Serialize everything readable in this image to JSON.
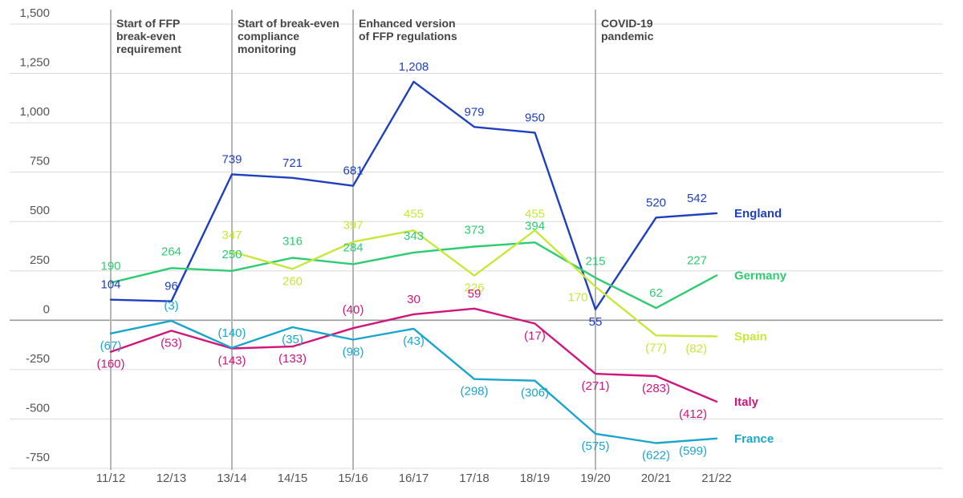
{
  "chart_data": {
    "type": "line",
    "categories": [
      "11/12",
      "12/13",
      "13/14",
      "14/15",
      "15/16",
      "16/17",
      "17/18",
      "18/19",
      "19/20",
      "20/21",
      "21/22"
    ],
    "ylim": [
      -750,
      1500
    ],
    "yticks": [
      1500,
      1250,
      1000,
      750,
      500,
      250,
      0,
      -250,
      -500,
      -750
    ],
    "ytick_labels": [
      "1,500",
      "1,250",
      "1,000",
      "750",
      "500",
      "250",
      "0",
      "-250",
      "-500",
      "-750"
    ],
    "grid": true,
    "events": [
      {
        "category": "11/12",
        "lines": [
          "Start of FFP",
          "break-even",
          "requirement"
        ]
      },
      {
        "category": "13/14",
        "lines": [
          "Start of break-even",
          "compliance",
          "monitoring"
        ]
      },
      {
        "category": "15/16",
        "lines": [
          "Enhanced version",
          "of FFP regulations"
        ]
      },
      {
        "category": "19/20",
        "lines": [
          "COVID-19",
          "pandemic"
        ]
      }
    ],
    "series": [
      {
        "name": "England",
        "color": "#1f3fbf",
        "values": [
          104,
          96,
          739,
          721,
          681,
          1208,
          979,
          950,
          55,
          520,
          542
        ],
        "labels": [
          "104",
          "96",
          "739",
          "721",
          "681",
          "1,208",
          "979",
          "950",
          "55",
          "520",
          "542"
        ]
      },
      {
        "name": "Germany",
        "color": "#2ecc71",
        "values": [
          190,
          264,
          250,
          316,
          284,
          343,
          373,
          394,
          215,
          62,
          227
        ],
        "labels": [
          "190",
          "264",
          "250",
          "316",
          "284",
          "343",
          "373",
          "394",
          "215",
          "62",
          "227"
        ]
      },
      {
        "name": "Spain",
        "color": "#c6e83a",
        "values": [
          null,
          null,
          347,
          260,
          397,
          455,
          226,
          455,
          170,
          -77,
          -82
        ],
        "labels": [
          "",
          "",
          "347",
          "260",
          "397",
          "455",
          "226",
          "455",
          "170",
          "(77)",
          "(82)"
        ]
      },
      {
        "name": "Italy",
        "color": "#d0157c",
        "values": [
          -160,
          -53,
          -143,
          -133,
          -40,
          30,
          59,
          -17,
          -271,
          -283,
          -412
        ],
        "labels": [
          "(160)",
          "(53)",
          "(143)",
          "(133)",
          "(40)",
          "30",
          "59",
          "(17)",
          "(271)",
          "(283)",
          "(412)"
        ]
      },
      {
        "name": "France",
        "color": "#1aa6cc",
        "values": [
          -67,
          -3,
          -140,
          -35,
          -98,
          -43,
          -298,
          -306,
          -575,
          -622,
          -599
        ],
        "labels": [
          "(67)",
          "(3)",
          "(140)",
          "(35)",
          "(98)",
          "(43)",
          "(298)",
          "(306)",
          "(575)",
          "(622)",
          "(599)"
        ]
      }
    ]
  }
}
